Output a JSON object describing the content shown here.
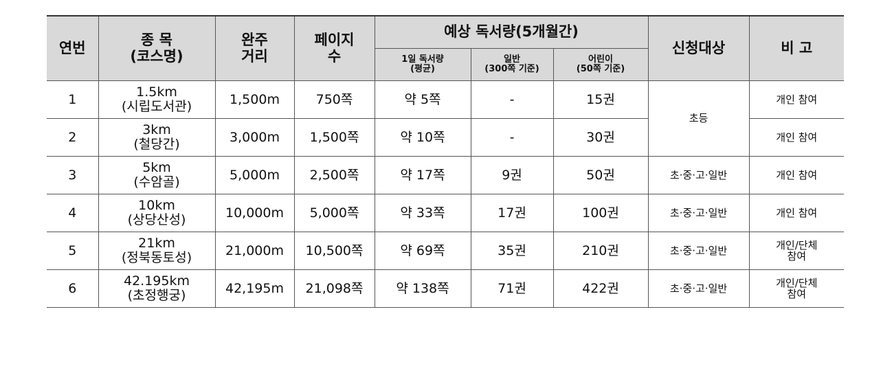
{
  "header": {
    "no": "연번",
    "course": [
      "종 목",
      "(코스명)"
    ],
    "distance": [
      "완주",
      "거리"
    ],
    "pages": [
      "페이지",
      "수"
    ],
    "expected": "예상 독서량(5개월간)",
    "daily": [
      "1일 독서량",
      "(평균)"
    ],
    "general": [
      "일반",
      "(300쪽 기준)"
    ],
    "children": [
      "어린이",
      "(50쪽 기준)"
    ],
    "target": "신청대상",
    "note": "비 고"
  },
  "rows": [
    {
      "no": "1",
      "course": [
        "1.5km",
        "(시립도서관)"
      ],
      "distance": "1,500m",
      "pages": "750쪽",
      "daily": "약 5쪽",
      "general": "-",
      "children": "15권",
      "target": "초등",
      "note": [
        "개인 참여"
      ]
    },
    {
      "no": "2",
      "course": [
        "3km",
        "(철당간)"
      ],
      "distance": "3,000m",
      "pages": "1,500쪽",
      "daily": "약 10쪽",
      "general": "-",
      "children": "30권",
      "note": [
        "개인 참여"
      ]
    },
    {
      "no": "3",
      "course": [
        "5km",
        "(수암골)"
      ],
      "distance": "5,000m",
      "pages": "2,500쪽",
      "daily": "약 17쪽",
      "general": "9권",
      "children": "50권",
      "target": "초·중·고·일반",
      "note": [
        "개인 참여"
      ]
    },
    {
      "no": "4",
      "course": [
        "10km",
        "(상당산성)"
      ],
      "distance": "10,000m",
      "pages": "5,000쪽",
      "daily": "약 33쪽",
      "general": "17권",
      "children": "100권",
      "target": "초·중·고·일반",
      "note": [
        "개인 참여"
      ]
    },
    {
      "no": "5",
      "course": [
        "21km",
        "(정북동토성)"
      ],
      "distance": "21,000m",
      "pages": "10,500쪽",
      "daily": "약 69쪽",
      "general": "35권",
      "children": "210권",
      "target": "초·중·고·일반",
      "note": [
        "개인/단체",
        "참여"
      ]
    },
    {
      "no": "6",
      "course": [
        "42.195km",
        "(초정행궁)"
      ],
      "distance": "42,195m",
      "pages": "21,098쪽",
      "daily": "약 138쪽",
      "general": "71권",
      "children": "422권",
      "target": "초·중·고·일반",
      "note": [
        "개인/단체",
        "참여"
      ]
    }
  ]
}
